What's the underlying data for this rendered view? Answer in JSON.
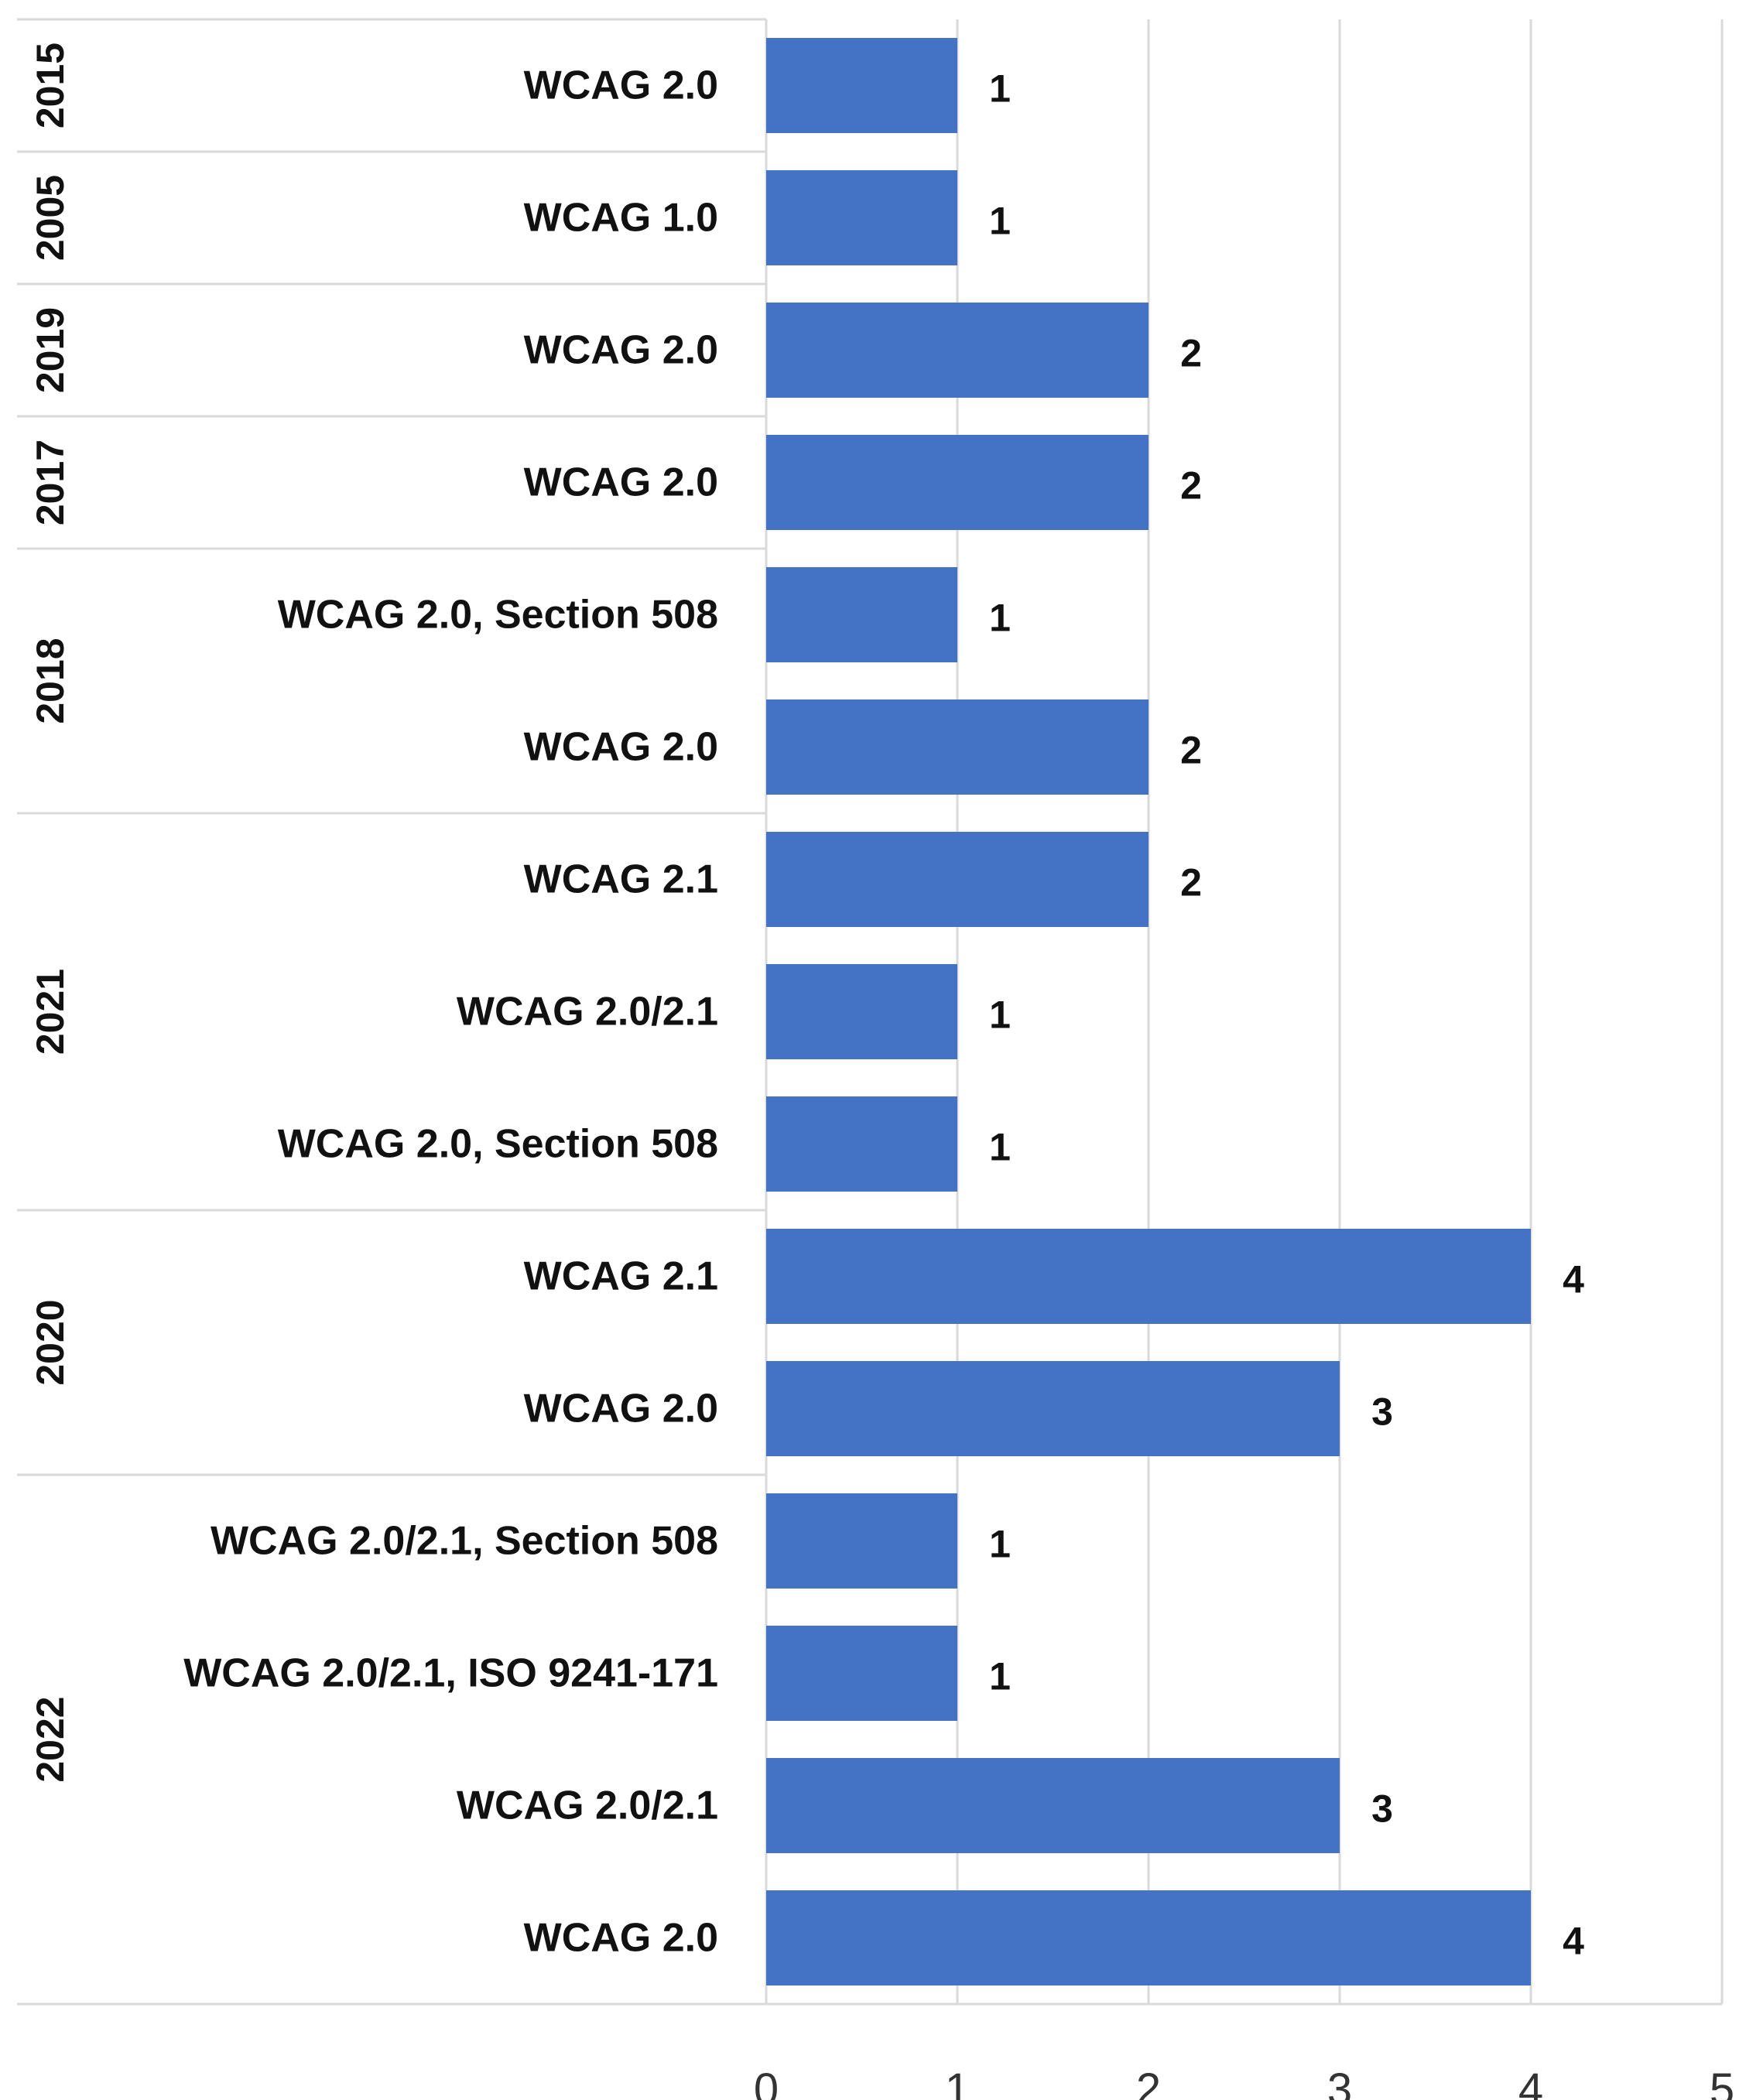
{
  "chart_data": {
    "type": "bar",
    "orientation": "horizontal",
    "title": "",
    "xlabel": "",
    "ylabel": "",
    "xlim": [
      0,
      5
    ],
    "x_ticks": [
      0,
      1,
      2,
      3,
      4,
      5
    ],
    "grid": true,
    "bar_color": "#4472C4",
    "groups": [
      {
        "year": "2015",
        "items": [
          {
            "label": "WCAG 2.0",
            "value": 1
          }
        ]
      },
      {
        "year": "2005",
        "items": [
          {
            "label": "WCAG 1.0",
            "value": 1
          }
        ]
      },
      {
        "year": "2019",
        "items": [
          {
            "label": "WCAG 2.0",
            "value": 2
          }
        ]
      },
      {
        "year": "2017",
        "items": [
          {
            "label": "WCAG 2.0",
            "value": 2
          }
        ]
      },
      {
        "year": "2018",
        "items": [
          {
            "label": "WCAG 2.0, Section 508",
            "value": 1
          },
          {
            "label": "WCAG 2.0",
            "value": 2
          }
        ]
      },
      {
        "year": "2021",
        "items": [
          {
            "label": "WCAG 2.1",
            "value": 2
          },
          {
            "label": "WCAG 2.0/2.1",
            "value": 1
          },
          {
            "label": "WCAG 2.0, Section 508",
            "value": 1
          }
        ]
      },
      {
        "year": "2020",
        "items": [
          {
            "label": "WCAG 2.1",
            "value": 4
          },
          {
            "label": "WCAG 2.0",
            "value": 3
          }
        ]
      },
      {
        "year": "2022",
        "items": [
          {
            "label": "WCAG 2.0/2.1, Section 508",
            "value": 1
          },
          {
            "label": "WCAG 2.0/2.1, ISO 9241-171",
            "value": 1
          },
          {
            "label": "WCAG 2.0/2.1",
            "value": 3
          },
          {
            "label": "WCAG 2.0",
            "value": 4
          }
        ]
      }
    ]
  }
}
